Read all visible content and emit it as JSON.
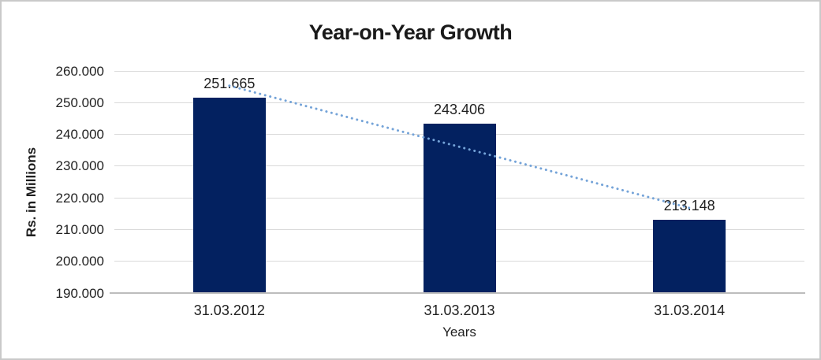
{
  "chart_data": {
    "type": "bar",
    "title": "Year-on-Year Growth",
    "xlabel": "Years",
    "ylabel": "Rs. in Millions",
    "categories": [
      "31.03.2012",
      "31.03.2013",
      "31.03.2014"
    ],
    "values": [
      251.665,
      243.406,
      213.148
    ],
    "value_labels": [
      "251.665",
      "243.406",
      "213.148"
    ],
    "ylim": [
      190,
      260
    ],
    "y_ticks": [
      260,
      250,
      240,
      230,
      220,
      210,
      200,
      190
    ],
    "y_tick_labels": [
      "260.000",
      "250.000",
      "240.000",
      "230.000",
      "220.000",
      "210.000",
      "200.000",
      "190.000"
    ],
    "grid": true,
    "legend": false,
    "trendline": {
      "type": "linear",
      "style": "dotted",
      "color": "#74a3d8"
    },
    "colors": {
      "bar": "#032160",
      "gridline": "#d9d9d9",
      "axis_line": "#bdbdbd",
      "label_text": "#1f1f1f",
      "title_text": "#1a1a1a",
      "border": "#c9c9c9",
      "background": "#ffffff"
    }
  }
}
